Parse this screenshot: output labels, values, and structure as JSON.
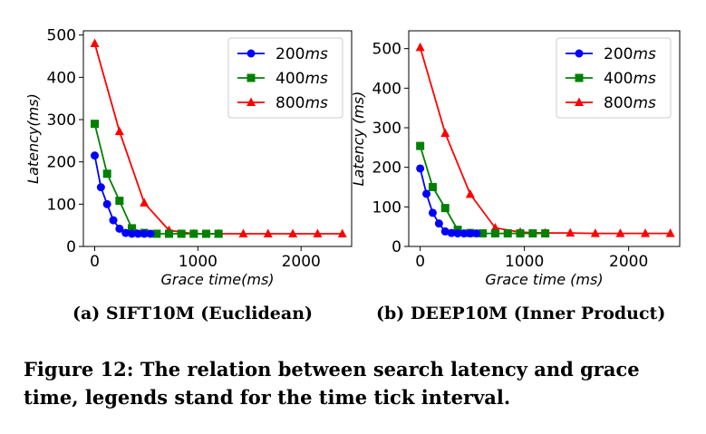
{
  "chart_data": [
    {
      "type": "line",
      "xlabel_prefix": "Grace time",
      "xlabel_unit": "(ms)",
      "ylabel_prefix": "Latency",
      "ylabel_unit": "(ms)",
      "xlim": [
        -110,
        2490
      ],
      "ylim": [
        0,
        510
      ],
      "xticks": [
        0,
        1000,
        2000
      ],
      "yticks": [
        0,
        100,
        200,
        300,
        400,
        500
      ],
      "legend_position": "top-right",
      "series": [
        {
          "name_num": "200",
          "name_unit": "ms",
          "color": "#0000ff",
          "marker": "circle",
          "x": [
            0,
            60,
            120,
            180,
            240,
            300,
            360,
            420,
            480,
            540
          ],
          "y": [
            215,
            140,
            100,
            62,
            42,
            32,
            30,
            30,
            30,
            30
          ]
        },
        {
          "name_num": "400",
          "name_unit": "ms",
          "color": "#008000",
          "marker": "square",
          "x": [
            0,
            120,
            240,
            360,
            480,
            600,
            720,
            840,
            960,
            1080,
            1200
          ],
          "y": [
            290,
            172,
            108,
            43,
            32,
            30,
            30,
            30,
            30,
            30,
            30
          ]
        },
        {
          "name_num": "800",
          "name_unit": "ms",
          "color": "#ff0000",
          "marker": "triangle",
          "x": [
            0,
            240,
            480,
            720,
            960,
            1200,
            1440,
            1680,
            1920,
            2160,
            2400
          ],
          "y": [
            480,
            272,
            103,
            38,
            30,
            30,
            30,
            30,
            30,
            30,
            30
          ]
        }
      ],
      "caption": "(a) SIFT10M (Euclidean)"
    },
    {
      "type": "line",
      "xlabel_prefix": "Grace time",
      "xlabel_unit": " (ms)",
      "ylabel_prefix": "Latency",
      "ylabel_unit": " (ms)",
      "xlim": [
        -110,
        2490
      ],
      "ylim": [
        0,
        545
      ],
      "xticks": [
        0,
        1000,
        2000
      ],
      "yticks": [
        0,
        100,
        200,
        300,
        400,
        500
      ],
      "legend_position": "top-right",
      "series": [
        {
          "name_num": "200",
          "name_unit": "ms",
          "color": "#0000ff",
          "marker": "circle",
          "x": [
            0,
            60,
            120,
            180,
            240,
            300,
            360,
            420,
            480,
            540
          ],
          "y": [
            197,
            133,
            85,
            58,
            38,
            34,
            33,
            33,
            33,
            33
          ]
        },
        {
          "name_num": "400",
          "name_unit": "ms",
          "color": "#008000",
          "marker": "square",
          "x": [
            0,
            120,
            240,
            360,
            480,
            600,
            720,
            840,
            960,
            1080,
            1200
          ],
          "y": [
            254,
            150,
            97,
            42,
            34,
            33,
            33,
            33,
            33,
            33,
            33
          ]
        },
        {
          "name_num": "800",
          "name_unit": "ms",
          "color": "#ff0000",
          "marker": "triangle",
          "x": [
            0,
            240,
            480,
            720,
            960,
            1200,
            1440,
            1680,
            1920,
            2160,
            2400
          ],
          "y": [
            503,
            286,
            132,
            47,
            36,
            34,
            34,
            33,
            33,
            33,
            33
          ]
        }
      ],
      "caption": "(b) DEEP10M (Inner Product)"
    }
  ],
  "figure_caption": "Figure 12: The relation between search latency and grace time, legends stand for the time tick interval."
}
